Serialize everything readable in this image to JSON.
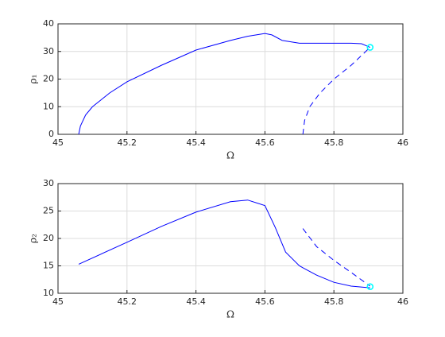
{
  "chart_data": [
    {
      "type": "line",
      "xlabel": "Ω",
      "ylabel": "ρ₁",
      "xlim": [
        45,
        46
      ],
      "xticks": [
        45,
        45.2,
        45.4,
        45.6,
        45.8,
        46
      ],
      "ylim": [
        0,
        40
      ],
      "yticks": [
        0,
        10,
        20,
        30,
        40
      ],
      "grid": true,
      "series": [
        {
          "color": "#0000ff",
          "style": "solid",
          "x": [
            45.06,
            45.065,
            45.08,
            45.1,
            45.15,
            45.2,
            45.3,
            45.4,
            45.5,
            45.55,
            45.6,
            45.62,
            45.65,
            45.7,
            45.75,
            45.8,
            45.85,
            45.88,
            45.905
          ],
          "values": [
            0,
            3,
            7,
            10,
            15,
            19,
            25,
            30.5,
            34,
            35.5,
            36.5,
            36,
            34,
            33,
            33,
            33,
            33,
            32.8,
            31.5
          ]
        },
        {
          "color": "#0000ff",
          "style": "dashed",
          "x": [
            45.71,
            45.715,
            45.73,
            45.76,
            45.8,
            45.85,
            45.905
          ],
          "values": [
            0,
            5,
            10,
            15,
            20,
            25,
            31.5
          ]
        },
        {
          "color": "#00ffff",
          "style": "marker",
          "x": [
            45.905
          ],
          "values": [
            31.5
          ]
        }
      ]
    },
    {
      "type": "line",
      "xlabel": "Ω",
      "ylabel": "ρ₂",
      "xlim": [
        45,
        46
      ],
      "xticks": [
        45,
        45.2,
        45.4,
        45.6,
        45.8,
        46
      ],
      "ylim": [
        10,
        30
      ],
      "yticks": [
        10,
        15,
        20,
        25,
        30
      ],
      "grid": true,
      "series": [
        {
          "color": "#0000ff",
          "style": "solid",
          "x": [
            45.06,
            45.2,
            45.3,
            45.4,
            45.5,
            45.55,
            45.6,
            45.63,
            45.66,
            45.7,
            45.75,
            45.8,
            45.85,
            45.905
          ],
          "values": [
            15.3,
            19.3,
            22.2,
            24.8,
            26.7,
            27,
            26,
            22,
            17.5,
            15,
            13.3,
            12,
            11.3,
            11
          ]
        },
        {
          "color": "#0000ff",
          "style": "dashed",
          "x": [
            45.71,
            45.75,
            45.8,
            45.85,
            45.905
          ],
          "values": [
            21.8,
            18.5,
            16,
            13.8,
            11.3
          ]
        },
        {
          "color": "#00ffff",
          "style": "marker",
          "x": [
            45.905
          ],
          "values": [
            11.2
          ]
        }
      ]
    }
  ]
}
